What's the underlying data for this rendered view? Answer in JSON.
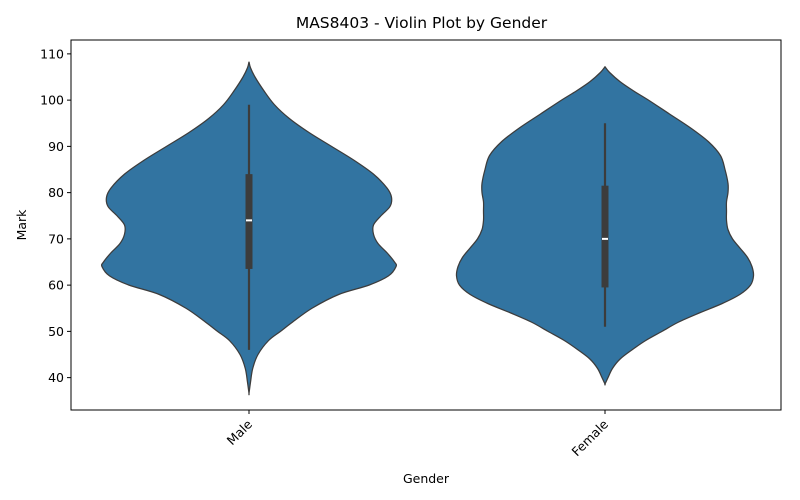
{
  "chart_data": {
    "type": "violin",
    "title": "MAS8403 - Violin Plot by Gender",
    "xlabel": "Gender",
    "ylabel": "Mark",
    "ylim": [
      33,
      113
    ],
    "yticks": [
      40,
      50,
      60,
      70,
      80,
      90,
      100,
      110
    ],
    "categories": [
      "Male",
      "Female"
    ],
    "xtick_rotation_deg": 45,
    "grid": false,
    "colors": {
      "violin_fill": "#3274a1",
      "violin_edge": "#3c3c3c",
      "box": "#3c3c3c",
      "median": "#ffffff"
    },
    "violins": [
      {
        "category": "Male",
        "whisker_low": 46,
        "q1": 63.5,
        "median": 74,
        "q3": 84,
        "whisker_high": 99,
        "density": [
          [
            108.3,
            0.0
          ],
          [
            107,
            0.01
          ],
          [
            105,
            0.04
          ],
          [
            102,
            0.1
          ],
          [
            99,
            0.17
          ],
          [
            96,
            0.27
          ],
          [
            93,
            0.4
          ],
          [
            90,
            0.55
          ],
          [
            87,
            0.7
          ],
          [
            84,
            0.83
          ],
          [
            81,
            0.92
          ],
          [
            79,
            0.95
          ],
          [
            77,
            0.94
          ],
          [
            75,
            0.88
          ],
          [
            73,
            0.83
          ],
          [
            71,
            0.83
          ],
          [
            69,
            0.86
          ],
          [
            67,
            0.92
          ],
          [
            65,
            0.97
          ],
          [
            64,
            0.98
          ],
          [
            62,
            0.93
          ],
          [
            60,
            0.8
          ],
          [
            58,
            0.6
          ],
          [
            55,
            0.42
          ],
          [
            52,
            0.29
          ],
          [
            50,
            0.21
          ],
          [
            48,
            0.13
          ],
          [
            45,
            0.06
          ],
          [
            42,
            0.025
          ],
          [
            39,
            0.01
          ],
          [
            36.6,
            0.0
          ]
        ]
      },
      {
        "category": "Female",
        "whisker_low": 51,
        "q1": 59.5,
        "median": 70,
        "q3": 81.5,
        "whisker_high": 95,
        "density": [
          [
            107.2,
            0.0
          ],
          [
            106,
            0.03
          ],
          [
            104,
            0.1
          ],
          [
            102,
            0.19
          ],
          [
            100,
            0.29
          ],
          [
            97,
            0.43
          ],
          [
            94,
            0.57
          ],
          [
            91,
            0.69
          ],
          [
            88,
            0.77
          ],
          [
            85,
            0.8
          ],
          [
            82,
            0.82
          ],
          [
            80,
            0.82
          ],
          [
            78,
            0.81
          ],
          [
            76,
            0.81
          ],
          [
            74,
            0.81
          ],
          [
            72,
            0.82
          ],
          [
            70,
            0.85
          ],
          [
            68,
            0.9
          ],
          [
            66,
            0.95
          ],
          [
            64,
            0.98
          ],
          [
            62,
            0.99
          ],
          [
            60,
            0.97
          ],
          [
            58,
            0.9
          ],
          [
            56,
            0.78
          ],
          [
            54,
            0.63
          ],
          [
            52,
            0.49
          ],
          [
            50,
            0.38
          ],
          [
            48,
            0.27
          ],
          [
            46,
            0.18
          ],
          [
            44,
            0.1
          ],
          [
            42,
            0.05
          ],
          [
            40,
            0.02
          ],
          [
            38.6,
            0.0
          ]
        ]
      }
    ]
  }
}
